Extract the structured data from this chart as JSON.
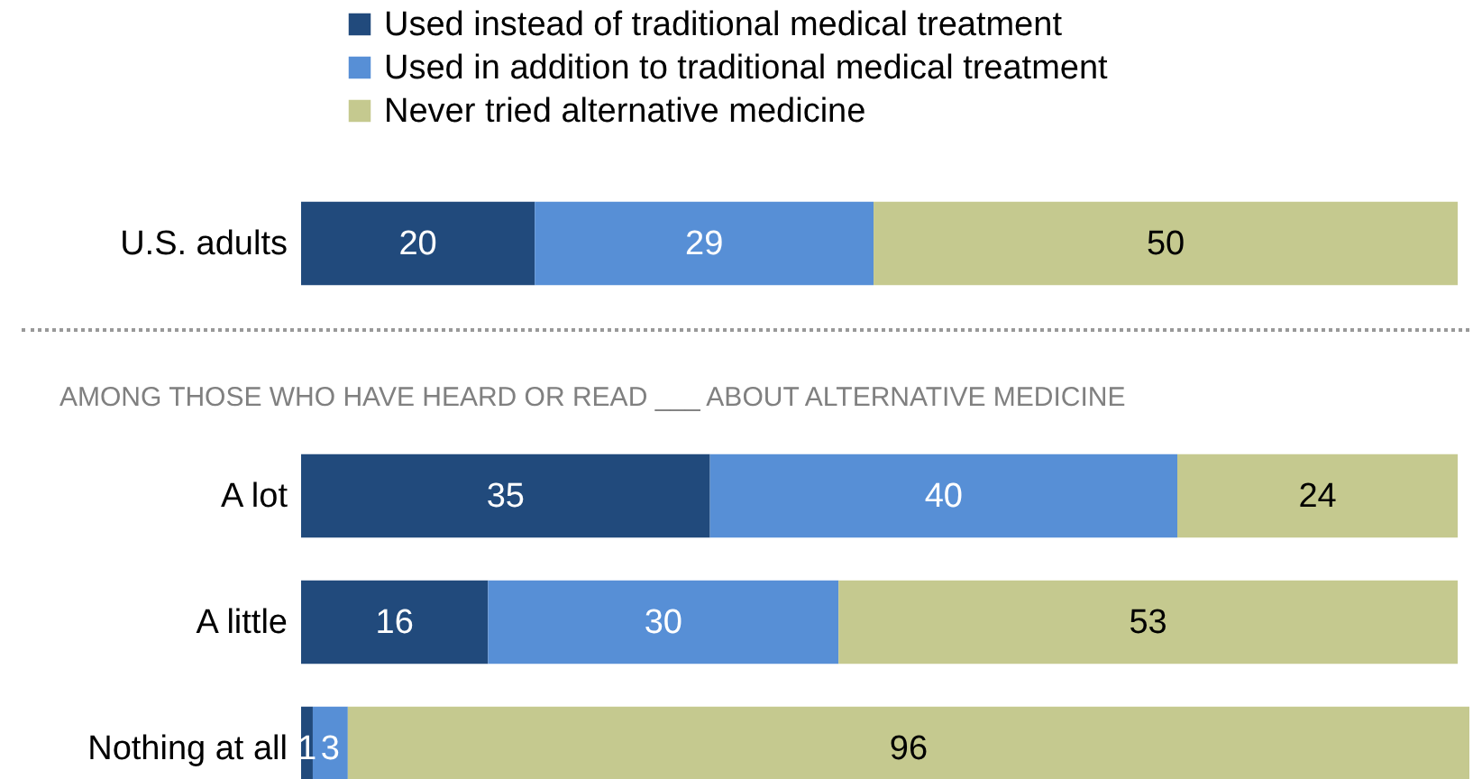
{
  "chart_data": [
    {
      "type": "bar",
      "orientation": "horizontal",
      "stacked": true,
      "data_labels": true,
      "legend": "top",
      "categories": [
        "U.S. adults"
      ],
      "series": [
        {
          "name": "Used instead of traditional medical treatment",
          "color": "#214a7c",
          "values": [
            20
          ]
        },
        {
          "name": "Used in addition to traditional medical treatment",
          "color": "#578fd6",
          "values": [
            29
          ]
        },
        {
          "name": "Never tried alternative medicine",
          "color": "#c5c98f",
          "values": [
            50
          ]
        }
      ]
    },
    {
      "type": "bar",
      "orientation": "horizontal",
      "stacked": true,
      "data_labels": true,
      "title": "AMONG THOSE WHO HAVE HEARD OR READ ___ ABOUT ALTERNATIVE MEDICINE",
      "categories": [
        "A lot",
        "A little",
        "Nothing at all"
      ],
      "series": [
        {
          "color": "#214a7c",
          "values": [
            35,
            16,
            1
          ]
        },
        {
          "color": "#578fd6",
          "values": [
            40,
            30,
            3
          ]
        },
        {
          "color": "#c5c98f",
          "values": [
            24,
            53,
            96
          ]
        }
      ]
    }
  ]
}
